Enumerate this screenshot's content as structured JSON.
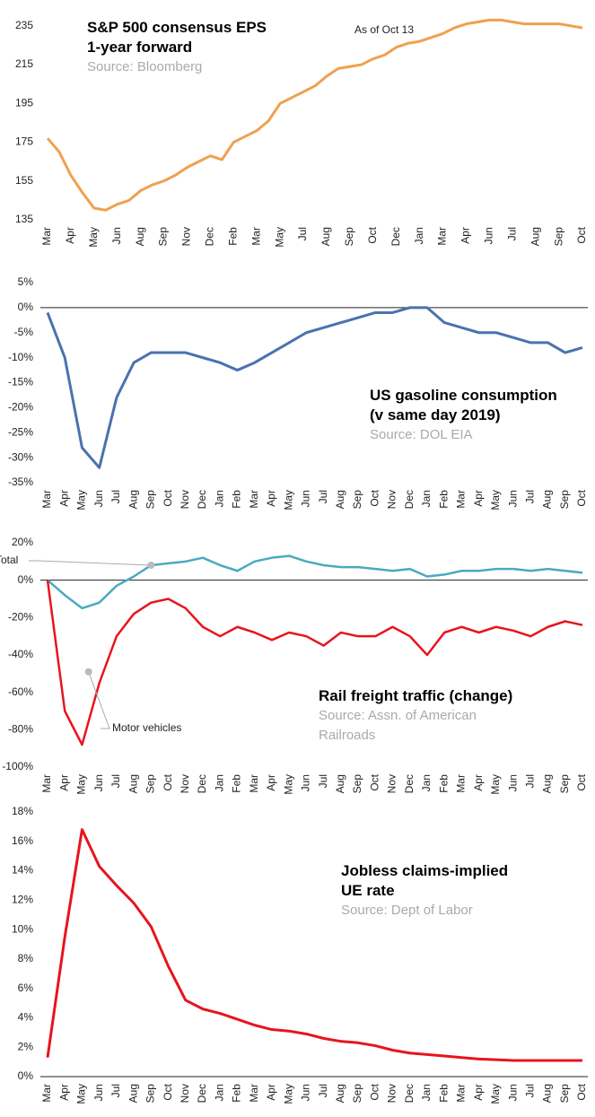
{
  "chart_data": [
    {
      "type": "line",
      "title": "S&P 500 consensus EPS",
      "subtitle": "1-year forward",
      "source": "Source: Bloomberg",
      "annotation": "As of Oct 13",
      "categories": [
        "Mar",
        null,
        "Apr",
        null,
        "May",
        null,
        "Jun",
        null,
        "Aug",
        null,
        "Sep",
        null,
        "Nov",
        null,
        "Dec",
        null,
        "Feb",
        null,
        "Mar",
        null,
        "May",
        null,
        "Jul",
        null,
        "Aug",
        null,
        "Sep",
        null,
        "Oct",
        null,
        "Dec",
        null,
        "Jan",
        null,
        "Mar",
        null,
        "Apr",
        null,
        "Jun",
        null,
        "Jul",
        null,
        "Aug",
        null,
        "Sep",
        null,
        "Oct"
      ],
      "values": [
        177,
        170,
        158,
        149,
        141,
        140,
        143,
        145,
        150,
        153,
        155,
        158,
        162,
        165,
        168,
        166,
        175,
        178,
        181,
        186,
        195,
        198,
        201,
        204,
        209,
        213,
        214,
        215,
        218,
        220,
        224,
        226,
        227,
        229,
        231,
        234,
        236,
        237,
        238,
        238,
        237,
        236,
        236,
        236,
        236,
        235,
        234
      ],
      "color": "#f0a050",
      "ylim": [
        135,
        240
      ],
      "yticks": [
        135,
        155,
        175,
        195,
        215,
        235
      ],
      "zero_line": false
    },
    {
      "type": "line",
      "title": "US gasoline consumption",
      "subtitle": "(v same day 2019)",
      "source": "Source: DOL EIA",
      "categories": [
        "Mar",
        "Apr",
        "May",
        "Jun",
        "Jul",
        "Aug",
        "Sep",
        "Oct",
        "Nov",
        "Dec",
        "Jan",
        "Feb",
        "Mar",
        "Apr",
        "May",
        "Jun",
        "Jul",
        "Aug",
        "Sep",
        "Oct",
        "Nov",
        "Dec",
        "Jan",
        "Feb",
        "Mar",
        "Apr",
        "May",
        "Jun",
        "Jul",
        "Aug",
        "Sep",
        "Oct"
      ],
      "values": [
        -1,
        -10,
        -28,
        -32,
        -18,
        -11,
        -9,
        -9,
        -9,
        -10,
        -11,
        -12.5,
        -11,
        -9,
        -7,
        -5,
        -4,
        -3,
        -2,
        -1,
        -1,
        0,
        0,
        -3,
        -4,
        -5,
        -5,
        -6,
        -7,
        -7,
        -9,
        -8
      ],
      "color": "#4a72b0",
      "ylim": [
        -35,
        5
      ],
      "yticks": [
        {
          "value": -35,
          "label": "-35%"
        },
        {
          "value": -30,
          "label": "-30%"
        },
        {
          "value": -25,
          "label": "-25%"
        },
        {
          "value": -20,
          "label": "-20%"
        },
        {
          "value": -15,
          "label": "-15%"
        },
        {
          "value": -10,
          "label": "-10%"
        },
        {
          "value": -5,
          "label": "-5%"
        },
        {
          "value": 0,
          "label": "0%"
        },
        {
          "value": 5,
          "label": "5%"
        }
      ],
      "zero_line": true
    },
    {
      "type": "line",
      "title": "Rail freight traffic (change)",
      "source": "Source: Assn. of American Railroads",
      "categories": [
        "Mar",
        "Apr",
        "May",
        "Jun",
        "Jul",
        "Aug",
        "Sep",
        "Oct",
        "Nov",
        "Dec",
        "Jan",
        "Feb",
        "Mar",
        "Apr",
        "May",
        "Jun",
        "Jul",
        "Aug",
        "Sep",
        "Oct",
        "Nov",
        "Dec",
        "Jan",
        "Feb",
        "Mar",
        "Apr",
        "May",
        "Jun",
        "Jul",
        "Aug",
        "Sep",
        "Oct"
      ],
      "series": [
        {
          "name": "Total",
          "color": "#4aaabf",
          "values": [
            0,
            -8,
            -15,
            -12,
            -3,
            2,
            8,
            9,
            10,
            12,
            8,
            5,
            10,
            12,
            13,
            10,
            8,
            7,
            7,
            6,
            5,
            6,
            2,
            3,
            5,
            5,
            6,
            6,
            5,
            6,
            5,
            4
          ]
        },
        {
          "name": "Motor vehicles",
          "color": "#e8141c",
          "values": [
            0,
            -70,
            -88,
            -55,
            -30,
            -18,
            -12,
            -10,
            -15,
            -25,
            -30,
            -25,
            -28,
            -32,
            -28,
            -30,
            -35,
            -28,
            -30,
            -30,
            -25,
            -30,
            -40,
            -28,
            -25,
            -28,
            -25,
            -27,
            -30,
            -25,
            -22,
            -24
          ]
        }
      ],
      "ylim": [
        -100,
        20
      ],
      "yticks": [
        {
          "value": -100,
          "label": "-100%"
        },
        {
          "value": -80,
          "label": "-80%"
        },
        {
          "value": -60,
          "label": "-60%"
        },
        {
          "value": -40,
          "label": "-40%"
        },
        {
          "value": -20,
          "label": "-20%"
        },
        {
          "value": 0,
          "label": "0%"
        },
        {
          "value": 20,
          "label": "20%"
        }
      ],
      "zero_line": true
    },
    {
      "type": "line",
      "title": "Jobless claims-implied",
      "subtitle": "UE rate",
      "source": "Source: Dept of Labor",
      "categories": [
        "Mar",
        "Apr",
        "May",
        "Jun",
        "Jul",
        "Aug",
        "Sep",
        "Oct",
        "Nov",
        "Dec",
        "Jan",
        "Feb",
        "Mar",
        "Apr",
        "May",
        "Jun",
        "Jul",
        "Aug",
        "Sep",
        "Oct",
        "Nov",
        "Dec",
        "Jan",
        "Feb",
        "Mar",
        "Apr",
        "May",
        "Jun",
        "Jul",
        "Aug",
        "Sep",
        "Oct"
      ],
      "values": [
        1.3,
        9.5,
        16.8,
        14.3,
        13.0,
        11.8,
        10.2,
        7.5,
        5.2,
        4.6,
        4.3,
        3.9,
        3.5,
        3.2,
        3.1,
        2.9,
        2.6,
        2.4,
        2.3,
        2.1,
        1.8,
        1.6,
        1.5,
        1.4,
        1.3,
        1.2,
        1.15,
        1.1,
        1.1,
        1.1,
        1.1,
        1.1
      ],
      "color": "#e8141c",
      "ylim": [
        0,
        18
      ],
      "yticks": [
        {
          "value": 0,
          "label": "0%"
        },
        {
          "value": 2,
          "label": "2%"
        },
        {
          "value": 4,
          "label": "4%"
        },
        {
          "value": 6,
          "label": "6%"
        },
        {
          "value": 8,
          "label": "8%"
        },
        {
          "value": 10,
          "label": "10%"
        },
        {
          "value": 12,
          "label": "12%"
        },
        {
          "value": 14,
          "label": "14%"
        },
        {
          "value": 16,
          "label": "16%"
        },
        {
          "value": 18,
          "label": "18%"
        }
      ],
      "zero_line": true
    }
  ]
}
